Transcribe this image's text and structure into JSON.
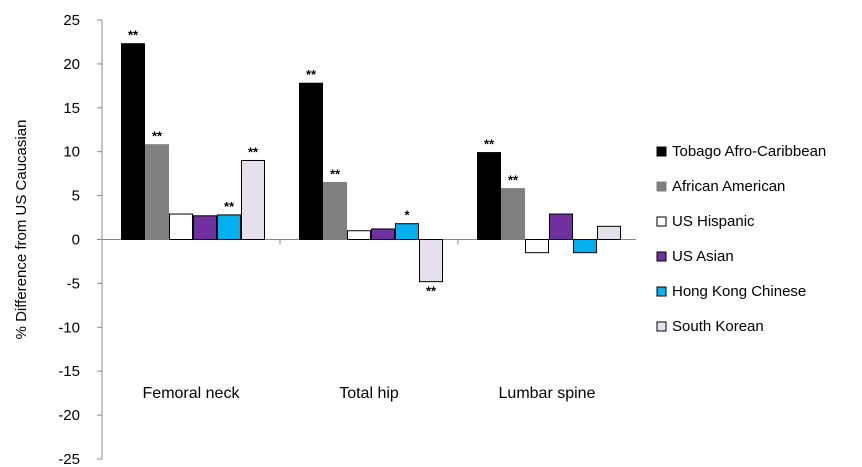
{
  "chart_data": {
    "type": "bar",
    "title": "",
    "xlabel": "",
    "ylabel": "% Difference from US Caucasian",
    "ylim": [
      -25,
      25
    ],
    "yticks": [
      -25,
      -20,
      -15,
      -10,
      -5,
      0,
      5,
      10,
      15,
      20,
      25
    ],
    "grid": false,
    "legend_position": "right",
    "categories": [
      "Femoral neck",
      "Total hip",
      "Lumbar spine"
    ],
    "series": [
      {
        "name": "Tobago Afro-Caribbean",
        "color": "#000000",
        "stroke": "#000000",
        "values": [
          22.3,
          17.8,
          9.9
        ],
        "annotations": [
          "**",
          "**",
          "**"
        ]
      },
      {
        "name": "African American",
        "color": "#808080",
        "stroke": "#808080",
        "values": [
          10.8,
          6.5,
          5.8
        ],
        "annotations": [
          "**",
          "**",
          "**"
        ]
      },
      {
        "name": "US Hispanic",
        "color": "#ffffff",
        "stroke": "#000000",
        "values": [
          2.9,
          1.0,
          -1.5
        ],
        "annotations": [
          "",
          "",
          ""
        ]
      },
      {
        "name": "US Asian",
        "color": "#7030a0",
        "stroke": "#000000",
        "values": [
          2.7,
          1.2,
          2.9
        ],
        "annotations": [
          "",
          "",
          ""
        ]
      },
      {
        "name": "Hong Kong Chinese",
        "color": "#00b0f0",
        "stroke": "#000000",
        "values": [
          2.8,
          1.8,
          -1.5
        ],
        "annotations": [
          "**",
          "*",
          ""
        ]
      },
      {
        "name": "South Korean",
        "color": "#e6e0ec",
        "stroke": "#000000",
        "values": [
          9.0,
          -4.8,
          1.5
        ],
        "annotations": [
          "**",
          "**",
          ""
        ]
      }
    ]
  }
}
